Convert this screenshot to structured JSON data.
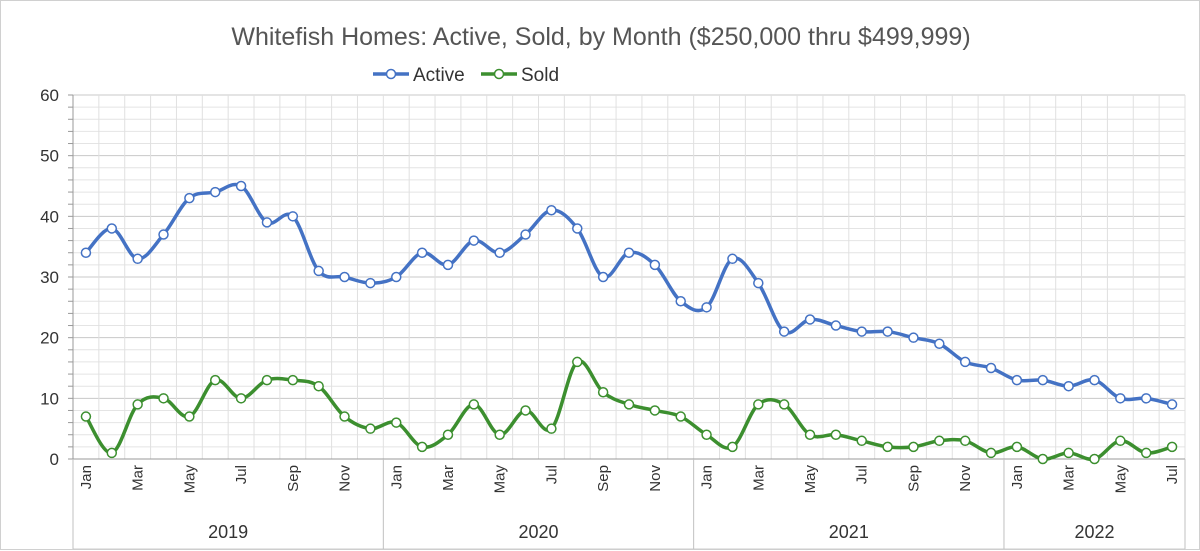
{
  "chart_data": {
    "type": "line",
    "title": "Whitefish Homes: Active, Sold, by Month ($250,000 thru $499,999)",
    "ylim": [
      0,
      60
    ],
    "yticks": [
      0,
      10,
      20,
      30,
      40,
      50,
      60
    ],
    "grid": true,
    "legend_position": "top",
    "month_tick_labels": [
      "Jan",
      "Mar",
      "May",
      "Jul",
      "Sep",
      "Nov"
    ],
    "years": [
      {
        "label": "2019",
        "months": 12
      },
      {
        "label": "2020",
        "months": 12
      },
      {
        "label": "2021",
        "months": 12
      },
      {
        "label": "2022",
        "months": 7
      }
    ],
    "x": [
      "Jan",
      "Feb",
      "Mar",
      "Apr",
      "May",
      "Jun",
      "Jul",
      "Aug",
      "Sep",
      "Oct",
      "Nov",
      "Dec",
      "Jan",
      "Feb",
      "Mar",
      "Apr",
      "May",
      "Jun",
      "Jul",
      "Aug",
      "Sep",
      "Oct",
      "Nov",
      "Dec",
      "Jan",
      "Feb",
      "Mar",
      "Apr",
      "May",
      "Jun",
      "Jul",
      "Aug",
      "Sep",
      "Oct",
      "Nov",
      "Dec",
      "Jan",
      "Feb",
      "Mar",
      "Apr",
      "May",
      "Jun",
      "Jul"
    ],
    "series": [
      {
        "name": "Active",
        "color": "#4472c4",
        "values": [
          34,
          38,
          33,
          37,
          43,
          44,
          45,
          39,
          40,
          31,
          30,
          29,
          30,
          34,
          32,
          36,
          34,
          37,
          41,
          38,
          30,
          34,
          32,
          26,
          25,
          33,
          29,
          21,
          23,
          22,
          21,
          21,
          20,
          19,
          16,
          15,
          13,
          13,
          12,
          13,
          10,
          10,
          9
        ]
      },
      {
        "name": "Sold",
        "color": "#3c8f2f",
        "values": [
          7,
          1,
          9,
          10,
          7,
          13,
          10,
          13,
          13,
          12,
          7,
          5,
          6,
          2,
          4,
          9,
          4,
          8,
          5,
          16,
          11,
          9,
          8,
          7,
          4,
          2,
          9,
          9,
          4,
          4,
          3,
          2,
          2,
          3,
          3,
          1,
          2,
          0,
          1,
          0,
          3,
          1,
          2
        ]
      }
    ]
  }
}
